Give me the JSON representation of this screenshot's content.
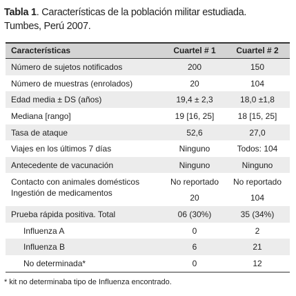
{
  "title": {
    "label": "Tabla 1",
    "text": ". Características de la población militar estudiada.",
    "subtitle": "Tumbes, Perú 2007."
  },
  "table": {
    "header": [
      "Características",
      "Cuartel # 1",
      "Cuartel # 2"
    ],
    "rows": [
      [
        "Número de sujetos notificados",
        "200",
        "150"
      ],
      [
        "Número de muestras (enrolados)",
        "20",
        "104"
      ],
      [
        "Edad media ± DS (años)",
        "19,4 ± 2,3",
        "18,0 ±1,8"
      ],
      [
        "Mediana [rango]",
        "19 [16, 25]",
        "18 [15, 25]"
      ],
      [
        "Tasa de ataque",
        "52,6",
        "27,0"
      ],
      [
        "Viajes en los últimos 7 días",
        "Ninguno",
        "Todos: 104"
      ],
      [
        "Antecedente de vacunación",
        "Ninguno",
        "Ninguno"
      ],
      [
        "Contacto con animales domésticos",
        "No reportado",
        "No reportado"
      ],
      [
        "Ingestión de medicamentos",
        "20",
        "104"
      ],
      [
        "Prueba rápida positiva. Total",
        "06 (30%)",
        "35 (34%)"
      ],
      [
        "Influenza A",
        "0",
        "2"
      ],
      [
        "Influenza B",
        "6",
        "21"
      ],
      [
        "No determinada*",
        "0",
        "12"
      ]
    ]
  },
  "footnote": "* kit no determinaba tipo de Influenza encontrado."
}
